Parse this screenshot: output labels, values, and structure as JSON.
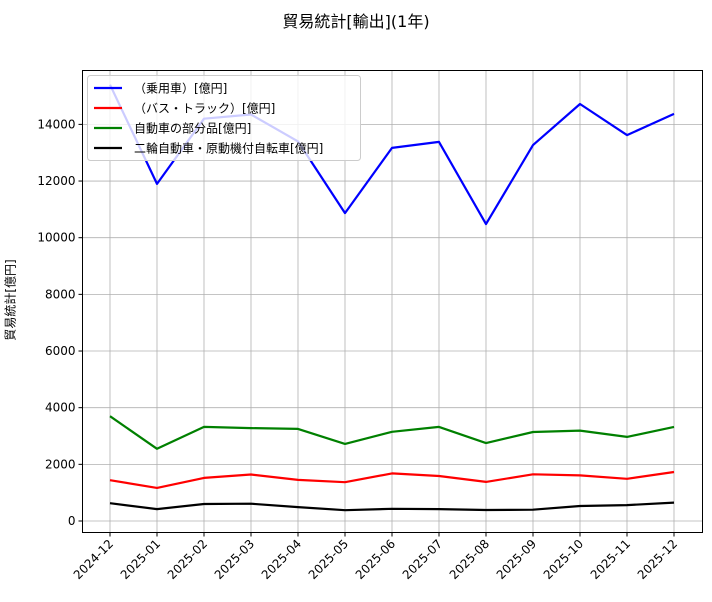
{
  "chart_data": {
    "type": "line",
    "title": "貿易統計[輸出](1年)",
    "xlabel": "",
    "ylabel": "貿易統計[億円]",
    "categories": [
      "2024-12",
      "2025-01",
      "2025-02",
      "2025-03",
      "2025-04",
      "2025-05",
      "2025-06",
      "2025-07",
      "2025-08",
      "2025-09",
      "2025-10",
      "2025-11",
      "2025-12"
    ],
    "yticks": [
      0,
      2000,
      4000,
      6000,
      8000,
      10000,
      12000,
      14000
    ],
    "ylim": [
      -400,
      15900
    ],
    "grid": true,
    "legend_position": "upper left",
    "series": [
      {
        "name": "（乗用車）[億円]",
        "color": "#0000ff",
        "values": [
          15400,
          11900,
          14200,
          14350,
          13400,
          10870,
          13170,
          13380,
          10480,
          13270,
          14720,
          13620,
          14370
        ]
      },
      {
        "name": "（バス・トラック）[億円]",
        "color": "#ff0000",
        "values": [
          1440,
          1170,
          1520,
          1640,
          1450,
          1370,
          1680,
          1590,
          1380,
          1650,
          1610,
          1490,
          1730
        ]
      },
      {
        "name": "自動車の部分品[億円]",
        "color": "#008000",
        "values": [
          3700,
          2550,
          3320,
          3280,
          3250,
          2720,
          3150,
          3320,
          2750,
          3140,
          3190,
          2970,
          3320
        ]
      },
      {
        "name": "二輪自動車・原動機付自転車[億円]",
        "color": "#000000",
        "values": [
          630,
          420,
          600,
          610,
          490,
          380,
          430,
          420,
          390,
          400,
          530,
          560,
          650
        ]
      }
    ]
  }
}
